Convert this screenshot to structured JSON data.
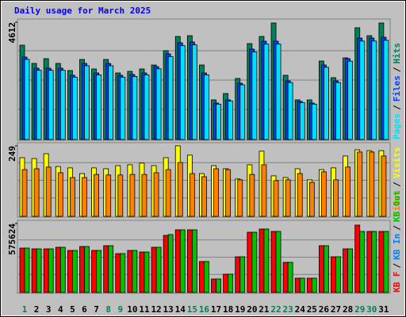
{
  "legend_separator": "/",
  "chart_data": [
    {
      "type": "bar",
      "title": "Daily usage for March 2025",
      "ylim": [
        0,
        4612
      ],
      "yticks": [
        4612
      ],
      "front": "first",
      "series": [
        {
          "name": "Pages",
          "color": "#00e0ff",
          "values": [
            3150,
            2720,
            2720,
            2720,
            2450,
            2900,
            2540,
            2900,
            2450,
            2480,
            2540,
            2780,
            3260,
            3690,
            3720,
            2540,
            1390,
            1510,
            2150,
            3440,
            3750,
            3750,
            2240,
            1450,
            1390,
            2840,
            2240,
            3080,
            3870,
            3870,
            3900
          ]
        },
        {
          "name": "Files",
          "color": "#0040ff",
          "values": [
            3241,
            2804,
            2804,
            2804,
            2524,
            2991,
            2617,
            2991,
            2524,
            2555,
            2617,
            2867,
            3365,
            3802,
            3833,
            2617,
            1433,
            1558,
            2212,
            3552,
            3864,
            3864,
            2306,
            1496,
            1433,
            2929,
            2306,
            3178,
            3988,
            3988,
            4020
          ]
        },
        {
          "name": "Hits",
          "color": "#00805c",
          "values": [
            3708,
            2991,
            3178,
            2991,
            2711,
            3147,
            2773,
            3147,
            2617,
            2680,
            2773,
            2929,
            3490,
            4051,
            4082,
            2929,
            1558,
            1807,
            2399,
            3770,
            4051,
            4581,
            2524,
            1558,
            1558,
            3085,
            2430,
            3209,
            4394,
            4082,
            4581
          ]
        }
      ]
    },
    {
      "type": "bar",
      "ylim": [
        0,
        249
      ],
      "yticks": [
        249
      ],
      "front": "first",
      "series": [
        {
          "name": "Sites",
          "color": "#ff8000",
          "values": [
            165,
            168,
            174,
            154,
            137,
            137,
            148,
            146,
            146,
            148,
            148,
            154,
            165,
            190,
            151,
            140,
            168,
            165,
            129,
            148,
            182,
            126,
            129,
            151,
            120,
            157,
            129,
            174,
            227,
            227,
            213
          ]
        },
        {
          "name": "Visits",
          "color": "#ffff00",
          "values": [
            207,
            204,
            221,
            176,
            171,
            151,
            171,
            168,
            179,
            182,
            188,
            179,
            207,
            249,
            216,
            151,
            179,
            168,
            132,
            182,
            230,
            143,
            137,
            168,
            129,
            165,
            171,
            213,
            235,
            232,
            232
          ]
        }
      ]
    },
    {
      "type": "bar",
      "ylim": [
        0,
        575624
      ],
      "yticks": [
        575624
      ],
      "front": "last",
      "categories": [
        1,
        2,
        3,
        4,
        5,
        6,
        7,
        8,
        9,
        10,
        11,
        12,
        13,
        14,
        15,
        16,
        17,
        18,
        19,
        20,
        21,
        22,
        23,
        24,
        25,
        26,
        27,
        28,
        29,
        30,
        31
      ],
      "highlight": {
        "color": "#00805c",
        "categories": [
          1,
          8,
          9,
          15,
          16,
          22,
          23,
          29,
          30
        ]
      },
      "series": [
        {
          "name": "KB F",
          "color": "#ff0000",
          "values": [
            370496,
            363880,
            363880,
            377112,
            350648,
            383728,
            350648,
            390344,
            324184,
            350648,
            337416,
            377112,
            476352,
            522664,
            522664,
            258024,
            112472,
            152168,
            297720,
            502816,
            529280,
            509432,
            251408,
            119088,
            119088,
            390344,
            297720,
            363880,
            562360,
            509432,
            509432
          ]
        },
        {
          "name": "KB In",
          "color": "#0080ff",
          "values": [
            null,
            null,
            null,
            null,
            null,
            null,
            null,
            null,
            null,
            null,
            null,
            null,
            null,
            null,
            null,
            null,
            null,
            null,
            null,
            null,
            null,
            null,
            null,
            null,
            null,
            null,
            null,
            null,
            null,
            null,
            null
          ]
        },
        {
          "name": "KB Out",
          "color": "#00c000",
          "values": [
            370496,
            363880,
            363880,
            377112,
            350648,
            383728,
            350648,
            390344,
            324184,
            350648,
            337416,
            377112,
            482968,
            522664,
            522664,
            258024,
            112472,
            152168,
            297720,
            502816,
            529280,
            509432,
            251408,
            119088,
            119088,
            390344,
            297720,
            363880,
            509432,
            509432,
            509432
          ]
        }
      ]
    }
  ]
}
